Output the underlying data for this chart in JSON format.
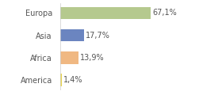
{
  "categories": [
    "Europa",
    "Asia",
    "Africa",
    "America"
  ],
  "values": [
    67.1,
    17.7,
    13.9,
    1.4
  ],
  "bar_colors": [
    "#b5c98e",
    "#6b85c0",
    "#f0b882",
    "#e8d44d"
  ],
  "labels": [
    "67,1%",
    "17,7%",
    "13,9%",
    "1,4%"
  ],
  "xlim": [
    0,
    100
  ],
  "background_color": "#ffffff",
  "label_fontsize": 7.0,
  "tick_fontsize": 7.0,
  "bar_height": 0.55
}
